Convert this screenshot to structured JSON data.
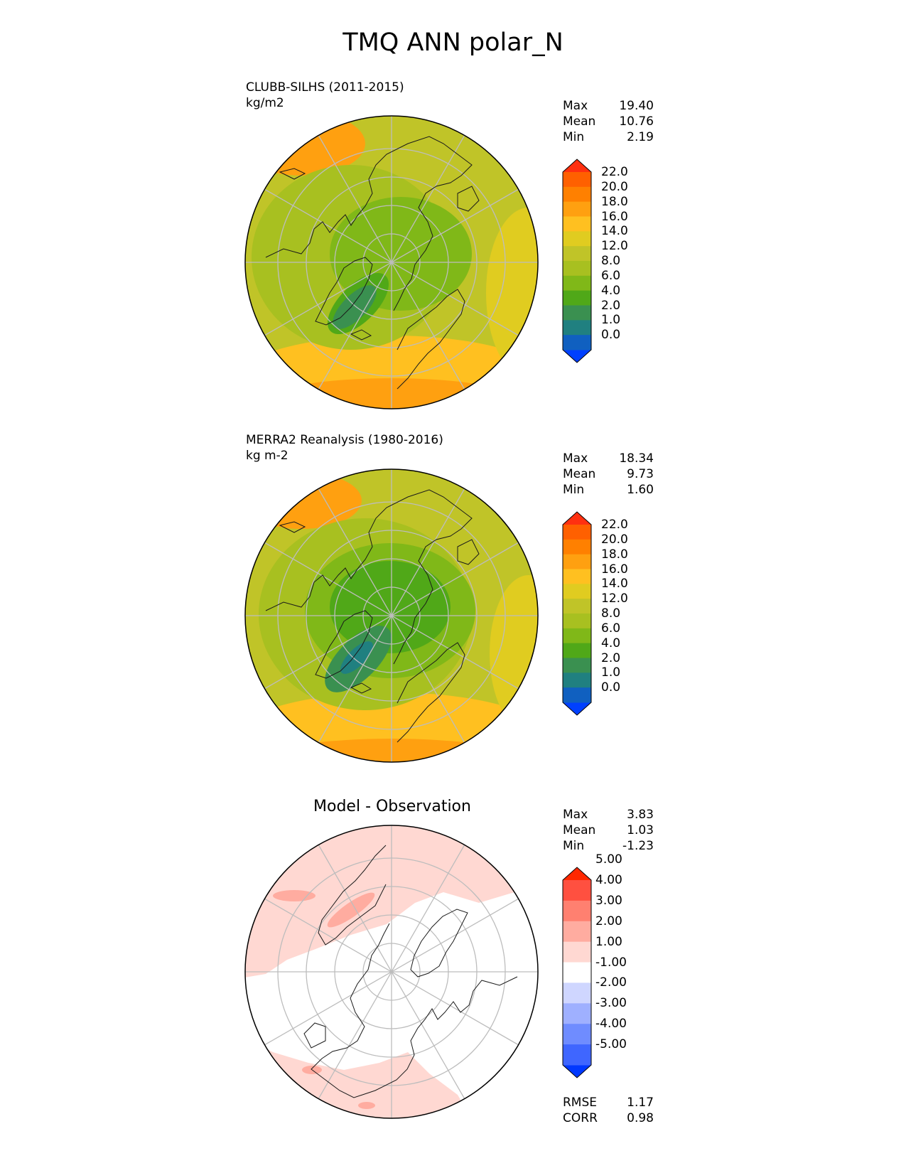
{
  "figure_title": "TMQ ANN polar_N",
  "colors": {
    "sequential": [
      "#0040ff",
      "#1060c0",
      "#208080",
      "#3a9050",
      "#50a818",
      "#80b818",
      "#a8c020",
      "#c0c428",
      "#e0cc20",
      "#ffc020",
      "#ffa010",
      "#ff8000",
      "#ff6000",
      "#ff3010"
    ],
    "diverging": [
      "#0038ff",
      "#3f66ff",
      "#6f8cff",
      "#9fb0ff",
      "#cfd6ff",
      "#ffffff",
      "#ffd8d2",
      "#ffaca0",
      "#ff8070",
      "#ff5040",
      "#ff2800"
    ],
    "land_outline": "#1a1a1a",
    "grid": "#bdbdbd"
  },
  "panels": [
    {
      "id": "model",
      "name": "CLUBB-SILHS (2011-2015)",
      "units": "kg/m2",
      "stats": {
        "max_label": "Max",
        "max": "19.40",
        "mean_label": "Mean",
        "mean": "10.76",
        "min_label": "Min",
        "min": "2.19"
      },
      "colorbar_ticks": [
        "0.0",
        "1.0",
        "2.0",
        "4.0",
        "6.0",
        "8.0",
        "12.0",
        "14.0",
        "16.0",
        "18.0",
        "20.0",
        "22.0"
      ]
    },
    {
      "id": "obs",
      "name": "MERRA2 Reanalysis (1980-2016)",
      "units": "kg m-2",
      "stats": {
        "max_label": "Max",
        "max": "18.34",
        "mean_label": "Mean",
        "mean": "9.73",
        "min_label": "Min",
        "min": "1.60"
      },
      "colorbar_ticks": [
        "0.0",
        "1.0",
        "2.0",
        "4.0",
        "6.0",
        "8.0",
        "12.0",
        "14.0",
        "16.0",
        "18.0",
        "20.0",
        "22.0"
      ]
    },
    {
      "id": "diff",
      "title": "Model - Observation",
      "stats": {
        "max_label": "Max",
        "max": "3.83",
        "mean_label": "Mean",
        "mean": "1.03",
        "min_label": "Min",
        "min": "-1.23"
      },
      "colorbar_ticks": [
        "-5.00",
        "-4.00",
        "-3.00",
        "-2.00",
        "-1.00",
        "1.00",
        "2.00",
        "3.00",
        "4.00",
        "5.00"
      ],
      "metrics": {
        "rmse_label": "RMSE",
        "rmse": "1.17",
        "corr_label": "CORR",
        "corr": "0.98"
      }
    }
  ],
  "chart_data": [
    {
      "type": "heatmap",
      "projection": "north polar stereographic",
      "title": "CLUBB-SILHS (2011-2015)",
      "units": "kg/m2",
      "stats": {
        "max": 19.4,
        "mean": 10.76,
        "min": 2.19
      },
      "levels": [
        0,
        1,
        2,
        4,
        6,
        8,
        12,
        14,
        16,
        18,
        20,
        22
      ],
      "colorbar_extend": "both",
      "grid": true
    },
    {
      "type": "heatmap",
      "projection": "north polar stereographic",
      "title": "MERRA2 Reanalysis (1980-2016)",
      "units": "kg m-2",
      "stats": {
        "max": 18.34,
        "mean": 9.73,
        "min": 1.6
      },
      "levels": [
        0,
        1,
        2,
        4,
        6,
        8,
        12,
        14,
        16,
        18,
        20,
        22
      ],
      "colorbar_extend": "both",
      "grid": true
    },
    {
      "type": "heatmap",
      "projection": "north polar stereographic",
      "title": "Model - Observation",
      "stats": {
        "max": 3.83,
        "mean": 1.03,
        "min": -1.23
      },
      "levels": [
        -5,
        -4,
        -3,
        -2,
        -1,
        1,
        2,
        3,
        4,
        5
      ],
      "colorbar_extend": "both",
      "metrics": {
        "rmse": 1.17,
        "corr": 0.98
      },
      "grid": true
    }
  ]
}
